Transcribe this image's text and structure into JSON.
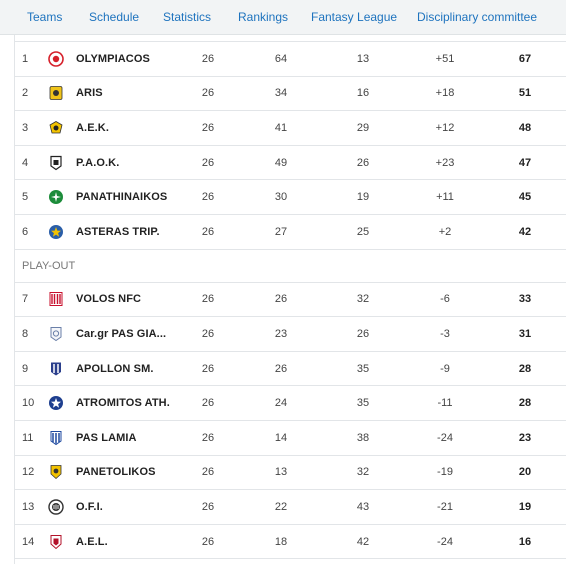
{
  "nav": {
    "items": [
      {
        "label": "Teams"
      },
      {
        "label": "Schedule"
      },
      {
        "label": "Statistics"
      },
      {
        "label": "Rankings"
      },
      {
        "label": "Fantasy League"
      },
      {
        "label": "Disciplinary committee"
      }
    ]
  },
  "standings": {
    "playoff_rows": [
      {
        "pos": "1",
        "team": "OLYMPIACOS",
        "logo": "olympiacos-icon",
        "played": "26",
        "wins": "64",
        "draws": "13",
        "diff": "+51",
        "points": "67",
        "color": "#d6202a"
      },
      {
        "pos": "2",
        "team": "ARIS",
        "logo": "aris-icon",
        "played": "26",
        "wins": "34",
        "draws": "16",
        "diff": "+18",
        "points": "51",
        "color": "#f0c419"
      },
      {
        "pos": "3",
        "team": "A.E.K.",
        "logo": "aek-icon",
        "played": "26",
        "wins": "41",
        "draws": "29",
        "diff": "+12",
        "points": "48",
        "color": "#f3c300"
      },
      {
        "pos": "4",
        "team": "P.A.O.K.",
        "logo": "paok-icon",
        "played": "26",
        "wins": "49",
        "draws": "26",
        "diff": "+23",
        "points": "47",
        "color": "#222222"
      },
      {
        "pos": "5",
        "team": "PANATHINAIKOS",
        "logo": "panathinaikos-icon",
        "played": "26",
        "wins": "30",
        "draws": "19",
        "diff": "+11",
        "points": "45",
        "color": "#1c8c3a"
      },
      {
        "pos": "6",
        "team": "ASTERAS TRIP.",
        "logo": "asteras-icon",
        "played": "26",
        "wins": "27",
        "draws": "25",
        "diff": "+2",
        "points": "42",
        "color": "#2a5ea8"
      }
    ],
    "section_label": "PLAY-OUT",
    "playout_rows": [
      {
        "pos": "7",
        "team": "VOLOS NFC",
        "logo": "volos-icon",
        "played": "26",
        "wins": "26",
        "draws": "32",
        "diff": "-6",
        "points": "33",
        "color": "#c8102e"
      },
      {
        "pos": "8",
        "team": "Car.gr PAS GIA...",
        "logo": "pas-giannina-icon",
        "played": "26",
        "wins": "23",
        "draws": "26",
        "diff": "-3",
        "points": "31",
        "color": "#6a7fa8"
      },
      {
        "pos": "9",
        "team": "APOLLON SM.",
        "logo": "apollon-icon",
        "played": "26",
        "wins": "26",
        "draws": "35",
        "diff": "-9",
        "points": "28",
        "color": "#2b3f8c"
      },
      {
        "pos": "10",
        "team": "ATROMITOS ATH.",
        "logo": "atromitos-icon",
        "played": "26",
        "wins": "24",
        "draws": "35",
        "diff": "-11",
        "points": "28",
        "color": "#1e3f8f"
      },
      {
        "pos": "11",
        "team": "PAS LAMIA",
        "logo": "lamia-icon",
        "played": "26",
        "wins": "14",
        "draws": "38",
        "diff": "-24",
        "points": "23",
        "color": "#1f4aa0"
      },
      {
        "pos": "12",
        "team": "PANETOLIKOS",
        "logo": "panetolikos-icon",
        "played": "26",
        "wins": "13",
        "draws": "32",
        "diff": "-19",
        "points": "20",
        "color": "#f2c200"
      },
      {
        "pos": "13",
        "team": "O.F.I.",
        "logo": "ofi-icon",
        "played": "26",
        "wins": "22",
        "draws": "43",
        "diff": "-21",
        "points": "19",
        "color": "#333333"
      },
      {
        "pos": "14",
        "team": "A.E.L.",
        "logo": "ael-icon",
        "played": "26",
        "wins": "18",
        "draws": "42",
        "diff": "-24",
        "points": "16",
        "color": "#b3122a"
      }
    ]
  }
}
